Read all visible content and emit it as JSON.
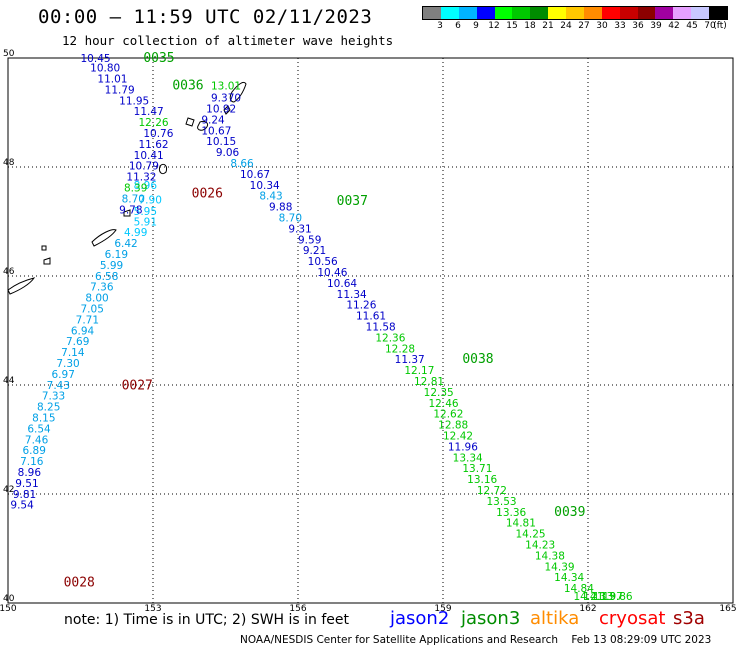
{
  "title": "00:00 – 11:59 UTC 02/11/2023",
  "subtitle": "12 hour collection of altimeter wave heights",
  "colorbar": {
    "colors": [
      "#808080",
      "#00ffff",
      "#00b4ff",
      "#0000ff",
      "#00ff00",
      "#00c800",
      "#008c00",
      "#ffff00",
      "#ffc800",
      "#ff8c00",
      "#ff0000",
      "#c80000",
      "#8c0000",
      "#a000a0",
      "#e6a0ff",
      "#c8c8ff",
      "#000000"
    ],
    "labels": [
      "3",
      "6",
      "9",
      "12",
      "15",
      "18",
      "21",
      "24",
      "27",
      "30",
      "33",
      "36",
      "39",
      "42",
      "45",
      "70",
      "(ft)"
    ]
  },
  "axes": {
    "lon_ticks": [
      "150",
      "153",
      "156",
      "159",
      "162",
      "165"
    ],
    "lat_ticks": [
      "50",
      "48",
      "46",
      "44",
      "42",
      "40"
    ]
  },
  "chart_data": {
    "type": "scatter",
    "xlim": [
      150,
      165
    ],
    "ylim": [
      40,
      50
    ],
    "passes": [
      {
        "label": "0035",
        "color": "#00a000",
        "lon": 152.8,
        "lat": 49.93
      },
      {
        "label": "0036",
        "color": "#00a000",
        "lon": 153.4,
        "lat": 49.42
      },
      {
        "label": "0037",
        "color": "#00a000",
        "lon": 156.8,
        "lat": 47.3
      },
      {
        "label": "0038",
        "color": "#00a000",
        "lon": 159.4,
        "lat": 44.4
      },
      {
        "label": "0039",
        "color": "#00a000",
        "lon": 161.3,
        "lat": 41.6
      },
      {
        "label": "0026",
        "color": "#8b0000",
        "lon": 153.8,
        "lat": 47.44
      },
      {
        "label": "0027",
        "color": "#8b0000",
        "lon": 152.35,
        "lat": 43.92
      },
      {
        "label": "0028",
        "color": "#8b0000",
        "lon": 151.15,
        "lat": 40.3
      }
    ],
    "tracks": [
      {
        "name": "pass-0026-0027-0028",
        "points": [
          {
            "lon": 152.6,
            "lat": 47.6,
            "v": "8.96",
            "c": "#00c8ff"
          },
          {
            "lon": 152.7,
            "lat": 47.33,
            "v": "7.90",
            "c": "#00c8ff"
          },
          {
            "lon": 152.6,
            "lat": 47.12,
            "v": "5.95",
            "c": "#00c8ff"
          },
          {
            "lon": 152.6,
            "lat": 46.93,
            "v": "5.91",
            "c": "#00c8ff"
          },
          {
            "lon": 152.4,
            "lat": 46.73,
            "v": "4.99",
            "c": "#00c8ff"
          },
          {
            "lon": 152.2,
            "lat": 46.53,
            "v": "6.42",
            "c": "#00a0e6"
          },
          {
            "lon": 152.0,
            "lat": 46.33,
            "v": "6.19",
            "c": "#00a0e6"
          },
          {
            "lon": 151.9,
            "lat": 46.13,
            "v": "5.99",
            "c": "#00a0e6"
          },
          {
            "lon": 151.8,
            "lat": 45.93,
            "v": "6.58",
            "c": "#00a0e6"
          },
          {
            "lon": 151.7,
            "lat": 45.73,
            "v": "7.36",
            "c": "#00a0e6"
          },
          {
            "lon": 151.6,
            "lat": 45.53,
            "v": "8.00",
            "c": "#00a0e6"
          },
          {
            "lon": 151.5,
            "lat": 45.33,
            "v": "7.05",
            "c": "#00a0e6"
          },
          {
            "lon": 151.4,
            "lat": 45.13,
            "v": "7.71",
            "c": "#00a0e6"
          },
          {
            "lon": 151.3,
            "lat": 44.93,
            "v": "6.94",
            "c": "#00a0e6"
          },
          {
            "lon": 151.2,
            "lat": 44.73,
            "v": "7.69",
            "c": "#00a0e6"
          },
          {
            "lon": 151.1,
            "lat": 44.53,
            "v": "7.14",
            "c": "#00a0e6"
          },
          {
            "lon": 151.0,
            "lat": 44.33,
            "v": "7.30",
            "c": "#00a0e6"
          },
          {
            "lon": 150.9,
            "lat": 44.13,
            "v": "6.97",
            "c": "#00a0e6"
          },
          {
            "lon": 150.8,
            "lat": 43.93,
            "v": "7.43",
            "c": "#00a0e6"
          },
          {
            "lon": 150.7,
            "lat": 43.73,
            "v": "7.33",
            "c": "#00a0e6"
          },
          {
            "lon": 150.6,
            "lat": 43.53,
            "v": "8.25",
            "c": "#00a0e6"
          },
          {
            "lon": 150.5,
            "lat": 43.33,
            "v": "8.15",
            "c": "#00a0e6"
          },
          {
            "lon": 150.4,
            "lat": 43.13,
            "v": "6.54",
            "c": "#00a0e6"
          },
          {
            "lon": 150.35,
            "lat": 42.93,
            "v": "7.46",
            "c": "#00a0e6"
          },
          {
            "lon": 150.3,
            "lat": 42.73,
            "v": "6.89",
            "c": "#00a0e6"
          },
          {
            "lon": 150.25,
            "lat": 42.53,
            "v": "7.16",
            "c": "#00a0e6"
          },
          {
            "lon": 150.2,
            "lat": 42.33,
            "v": "8.96",
            "c": "#0000c8"
          },
          {
            "lon": 150.15,
            "lat": 42.13,
            "v": "9.51",
            "c": "#0000c8"
          },
          {
            "lon": 150.1,
            "lat": 41.93,
            "v": "9.81",
            "c": "#0000c8"
          },
          {
            "lon": 150.05,
            "lat": 41.73,
            "v": "9.54",
            "c": "#0000c8"
          }
        ]
      },
      {
        "name": "pass-0035-0039",
        "points": [
          {
            "lon": 151.5,
            "lat": 49.93,
            "v": "10.45",
            "c": "#0000c8"
          },
          {
            "lon": 151.7,
            "lat": 49.75,
            "v": "10.80",
            "c": "#0000c8"
          },
          {
            "lon": 151.85,
            "lat": 49.55,
            "v": "11.01",
            "c": "#0000c8"
          },
          {
            "lon": 152.0,
            "lat": 49.35,
            "v": "11.79",
            "c": "#0000c8"
          },
          {
            "lon": 152.3,
            "lat": 49.15,
            "v": "11.95",
            "c": "#0000c8"
          },
          {
            "lon": 152.6,
            "lat": 48.95,
            "v": "11.47",
            "c": "#0000c8"
          },
          {
            "lon": 152.7,
            "lat": 48.75,
            "v": "12.26",
            "c": "#00c800"
          },
          {
            "lon": 152.8,
            "lat": 48.55,
            "v": "10.76",
            "c": "#0000c8"
          },
          {
            "lon": 152.7,
            "lat": 48.35,
            "v": "11.62",
            "c": "#0000c8"
          },
          {
            "lon": 152.6,
            "lat": 48.15,
            "v": "10.41",
            "c": "#0000c8"
          },
          {
            "lon": 152.5,
            "lat": 47.95,
            "v": "10.79",
            "c": "#0000c8"
          },
          {
            "lon": 152.45,
            "lat": 47.75,
            "v": "11.32",
            "c": "#0000c8"
          },
          {
            "lon": 152.4,
            "lat": 47.55,
            "v": "8.39",
            "c": "#00c800"
          },
          {
            "lon": 152.35,
            "lat": 47.35,
            "v": "8.70",
            "c": "#00a0e6"
          },
          {
            "lon": 152.3,
            "lat": 47.15,
            "v": "9.78",
            "c": "#0000c8"
          },
          {
            "lon": 154.2,
            "lat": 49.42,
            "v": "13.01",
            "c": "#00c800"
          },
          {
            "lon": 154.2,
            "lat": 49.2,
            "v": "9.370",
            "c": "#0000c8"
          },
          {
            "lon": 154.1,
            "lat": 49.0,
            "v": "10.92",
            "c": "#0000c8"
          },
          {
            "lon": 154.0,
            "lat": 48.8,
            "v": "9.24",
            "c": "#0000c8"
          },
          {
            "lon": 154.0,
            "lat": 48.6,
            "v": "10.67",
            "c": "#0000c8"
          },
          {
            "lon": 154.1,
            "lat": 48.4,
            "v": "10.15",
            "c": "#0000c8"
          },
          {
            "lon": 154.3,
            "lat": 48.2,
            "v": "9.06",
            "c": "#0000c8"
          },
          {
            "lon": 154.6,
            "lat": 48.0,
            "v": "8.66",
            "c": "#00a0e6"
          },
          {
            "lon": 154.8,
            "lat": 47.8,
            "v": "10.67",
            "c": "#0000c8"
          },
          {
            "lon": 155.0,
            "lat": 47.6,
            "v": "10.34",
            "c": "#0000c8"
          },
          {
            "lon": 155.2,
            "lat": 47.4,
            "v": "8.43",
            "c": "#00a0e6"
          },
          {
            "lon": 155.4,
            "lat": 47.2,
            "v": "9.88",
            "c": "#0000c8"
          },
          {
            "lon": 155.6,
            "lat": 47.0,
            "v": "8.70",
            "c": "#00a0e6"
          },
          {
            "lon": 155.8,
            "lat": 46.8,
            "v": "9.31",
            "c": "#0000c8"
          },
          {
            "lon": 156.0,
            "lat": 46.6,
            "v": "9.59",
            "c": "#0000c8"
          },
          {
            "lon": 156.1,
            "lat": 46.4,
            "v": "9.21",
            "c": "#0000c8"
          },
          {
            "lon": 156.2,
            "lat": 46.2,
            "v": "10.56",
            "c": "#0000c8"
          },
          {
            "lon": 156.4,
            "lat": 46.0,
            "v": "10.46",
            "c": "#0000c8"
          },
          {
            "lon": 156.6,
            "lat": 45.8,
            "v": "10.64",
            "c": "#0000c8"
          },
          {
            "lon": 156.8,
            "lat": 45.6,
            "v": "11.34",
            "c": "#0000c8"
          },
          {
            "lon": 157.0,
            "lat": 45.4,
            "v": "11.26",
            "c": "#0000c8"
          },
          {
            "lon": 157.2,
            "lat": 45.2,
            "v": "11.61",
            "c": "#0000c8"
          },
          {
            "lon": 157.4,
            "lat": 45.0,
            "v": "11.58",
            "c": "#0000c8"
          },
          {
            "lon": 157.6,
            "lat": 44.8,
            "v": "12.36",
            "c": "#00c800"
          },
          {
            "lon": 157.8,
            "lat": 44.6,
            "v": "12.28",
            "c": "#00c800"
          },
          {
            "lon": 158.0,
            "lat": 44.4,
            "v": "11.37",
            "c": "#0000c8"
          },
          {
            "lon": 158.2,
            "lat": 44.2,
            "v": "12.17",
            "c": "#00c800"
          },
          {
            "lon": 158.4,
            "lat": 44.0,
            "v": "12.81",
            "c": "#00c800"
          },
          {
            "lon": 158.6,
            "lat": 43.8,
            "v": "12.35",
            "c": "#00c800"
          },
          {
            "lon": 158.7,
            "lat": 43.6,
            "v": "12.46",
            "c": "#00c800"
          },
          {
            "lon": 158.8,
            "lat": 43.4,
            "v": "12.62",
            "c": "#00c800"
          },
          {
            "lon": 158.9,
            "lat": 43.2,
            "v": "12.88",
            "c": "#00c800"
          },
          {
            "lon": 159.0,
            "lat": 43.0,
            "v": "12.42",
            "c": "#00c800"
          },
          {
            "lon": 159.1,
            "lat": 42.8,
            "v": "11.96",
            "c": "#0000c8"
          },
          {
            "lon": 159.2,
            "lat": 42.6,
            "v": "13.34",
            "c": "#00c800"
          },
          {
            "lon": 159.4,
            "lat": 42.4,
            "v": "13.71",
            "c": "#00c800"
          },
          {
            "lon": 159.5,
            "lat": 42.2,
            "v": "13.16",
            "c": "#00c800"
          },
          {
            "lon": 159.7,
            "lat": 42.0,
            "v": "12.72",
            "c": "#00c800"
          },
          {
            "lon": 159.9,
            "lat": 41.8,
            "v": "13.53",
            "c": "#00c800"
          },
          {
            "lon": 160.1,
            "lat": 41.6,
            "v": "13.36",
            "c": "#00c800"
          },
          {
            "lon": 160.3,
            "lat": 41.4,
            "v": "14.81",
            "c": "#00c800"
          },
          {
            "lon": 160.5,
            "lat": 41.2,
            "v": "14.25",
            "c": "#00c800"
          },
          {
            "lon": 160.7,
            "lat": 41.0,
            "v": "14.23",
            "c": "#00c800"
          },
          {
            "lon": 160.9,
            "lat": 40.8,
            "v": "14.38",
            "c": "#00c800"
          },
          {
            "lon": 161.1,
            "lat": 40.6,
            "v": "14.39",
            "c": "#00c800"
          },
          {
            "lon": 161.3,
            "lat": 40.4,
            "v": "14.34",
            "c": "#00c800"
          },
          {
            "lon": 161.5,
            "lat": 40.2,
            "v": "14.84",
            "c": "#00c800"
          },
          {
            "lon": 161.7,
            "lat": 40.0,
            "v": "14.21",
            "c": "#00c800"
          },
          {
            "lon": 161.9,
            "lat": 39.8,
            "v": "14.13",
            "c": "#00c800"
          },
          {
            "lon": 162.1,
            "lat": 39.6,
            "v": "13.97",
            "c": "#00c800"
          },
          {
            "lon": 162.3,
            "lat": 39.4,
            "v": "13.86",
            "c": "#00c800"
          }
        ]
      }
    ]
  },
  "note": "note: 1) Time is in UTC; 2) SWH is in feet",
  "legend": [
    {
      "name": "jason2",
      "color": "#0000ff"
    },
    {
      "name": "jason3",
      "color": "#008c00"
    },
    {
      "name": "altika",
      "color": "#ff8c00"
    },
    {
      "name": "cryosat",
      "color": "#ff0000"
    },
    {
      "name": "s3a",
      "color": "#a00000"
    }
  ],
  "footer": "NOAA/NESDIS Center for Satellite Applications and Research    Feb 13 08:29:09 UTC 2023"
}
